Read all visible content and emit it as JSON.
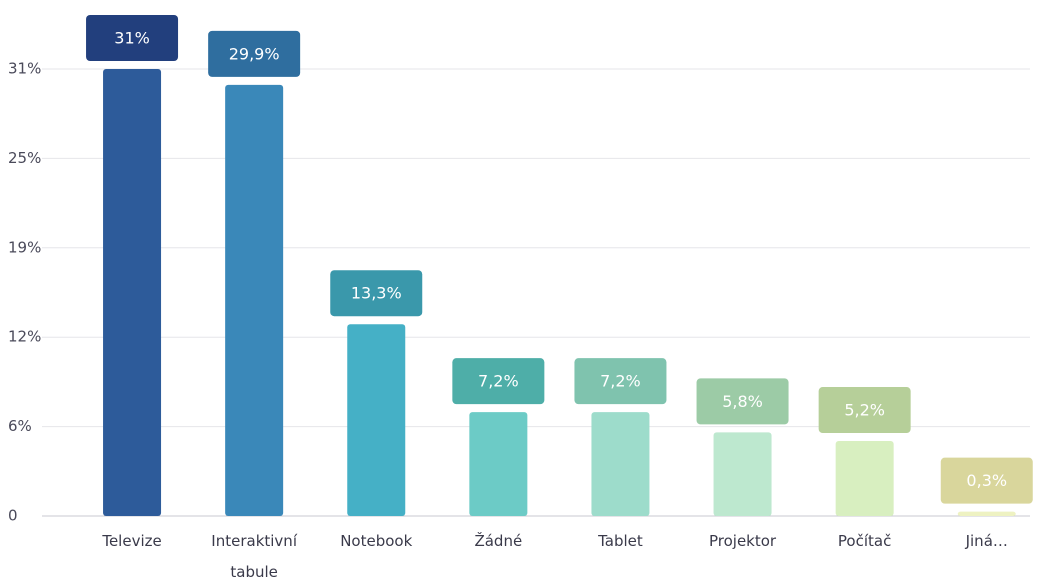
{
  "chart_data": {
    "type": "bar",
    "categories": [
      "Televize",
      "Interaktivní tabule",
      "Notebook",
      "Žádné",
      "Tablet",
      "Projektor",
      "Počítač",
      "Jiná…"
    ],
    "values": [
      31,
      29.9,
      13.3,
      7.2,
      7.2,
      5.8,
      5.2,
      0.3
    ],
    "value_labels": [
      "31%",
      "29,9%",
      "13,3%",
      "7,2%",
      "7,2%",
      "5,8%",
      "5,2%",
      "0,3%"
    ],
    "colors": [
      "#2d5b9a",
      "#3a88b9",
      "#45b0c6",
      "#6ccbc6",
      "#9ddccb",
      "#bde8cf",
      "#d8efc0",
      "#eef2c2"
    ],
    "label_colors": [
      "#223f7d",
      "#2f6e9f",
      "#3a98ab",
      "#4eaea8",
      "#7fc3ae",
      "#9ccba6",
      "#b6cf99",
      "#d9d69c"
    ],
    "ylim": [
      0,
      31
    ],
    "yticks": [
      0,
      {
        "value": 6.2,
        "label": "6%"
      },
      {
        "value": 12.4,
        "label": "12%"
      },
      {
        "value": 18.6,
        "label": "19%"
      },
      {
        "value": 24.8,
        "label": "25%"
      },
      {
        "value": 31,
        "label": "31%"
      }
    ],
    "grid": true
  }
}
